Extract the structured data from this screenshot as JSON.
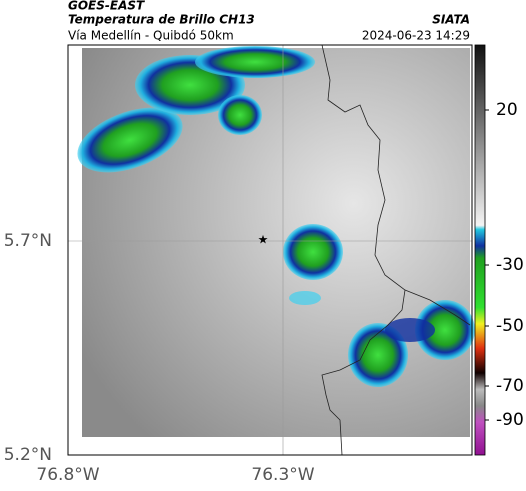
{
  "header": {
    "satellite": "GOES-EAST",
    "product": "Temperatura de Brillo CH13",
    "source": "SIATA",
    "region": "Vía Medellín - Quibdó 50km",
    "timestamp": "2024-06-23 14:29"
  },
  "axes": {
    "lat_labels": [
      "5.7°N",
      "5.2°N"
    ],
    "lon_labels": [
      "76.8°W",
      "76.3°W"
    ]
  },
  "colorbar": {
    "ticks": [
      20,
      -30,
      -50,
      -70,
      -90
    ]
  }
}
